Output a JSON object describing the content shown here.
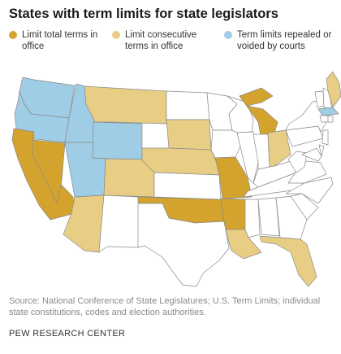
{
  "title": "States with term limits for state legislators",
  "legend": [
    {
      "label": "Limit total terms in office",
      "color": "#d4a32e",
      "category": "total"
    },
    {
      "label": "Limit consecutive terms in office",
      "color": "#e8cd85",
      "category": "consecutive"
    },
    {
      "label": "Term limits repealed or voided by courts",
      "color": "#9ecde5",
      "category": "repealed"
    }
  ],
  "map": {
    "colors": {
      "none": "#ffffff",
      "outline": "#8a8a8a"
    },
    "states": {
      "total": [
        "CA",
        "NV",
        "MI",
        "MO",
        "OK",
        "AR"
      ],
      "consecutive": [
        "MT",
        "SD",
        "NE",
        "CO",
        "AZ",
        "OH",
        "LA",
        "FL",
        "ME"
      ],
      "repealed": [
        "WA",
        "OR",
        "ID",
        "WY",
        "UT",
        "MA"
      ]
    }
  },
  "source": "Source: National Conference of State Legislatures; U.S. Term Limits; individual state constitutions, codes and election authorities.",
  "footer": "PEW RESEARCH CENTER"
}
